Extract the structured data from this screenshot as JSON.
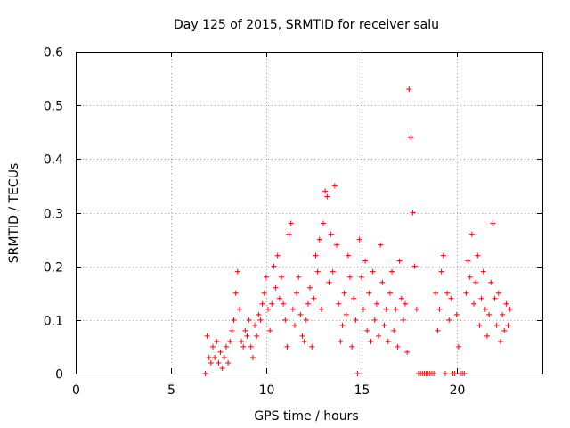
{
  "chart_data": {
    "type": "scatter",
    "title": "Day 125 of 2015, SRMTID for receiver salu",
    "xlabel": "GPS time / hours",
    "ylabel": "SRMTID / TECUs",
    "xlim": [
      0,
      24.5
    ],
    "ylim": [
      0,
      0.6
    ],
    "xticks": [
      0,
      5,
      10,
      15,
      20
    ],
    "xtick_labels": [
      "0",
      "5",
      "10",
      "15",
      "20"
    ],
    "yticks": [
      0,
      0.1,
      0.2,
      0.3,
      0.4,
      0.5,
      0.6
    ],
    "ytick_labels": [
      "0",
      "0.1",
      "0.2",
      "0.3",
      "0.4",
      "0.5",
      "0.6"
    ],
    "grid": true,
    "marker": "+",
    "series": [
      {
        "name": "SRMTID",
        "color": "#ff0000",
        "x": [
          6.8,
          6.9,
          7.0,
          7.1,
          7.2,
          7.3,
          7.4,
          7.5,
          7.6,
          7.7,
          7.8,
          7.9,
          8.0,
          8.1,
          8.2,
          8.3,
          8.4,
          8.5,
          8.6,
          8.7,
          8.8,
          8.9,
          9.0,
          9.1,
          9.2,
          9.3,
          9.4,
          9.5,
          9.6,
          9.7,
          9.8,
          9.9,
          10.0,
          10.1,
          10.2,
          10.3,
          10.4,
          10.5,
          10.6,
          10.7,
          10.8,
          10.9,
          11.0,
          11.1,
          11.2,
          11.3,
          11.4,
          11.5,
          11.6,
          11.7,
          11.8,
          11.9,
          12.0,
          12.1,
          12.2,
          12.3,
          12.4,
          12.5,
          12.6,
          12.7,
          12.8,
          12.9,
          13.0,
          13.1,
          13.2,
          13.3,
          13.4,
          13.5,
          13.6,
          13.7,
          13.8,
          13.9,
          14.0,
          14.1,
          14.2,
          14.3,
          14.4,
          14.5,
          14.6,
          14.7,
          14.8,
          14.9,
          15.0,
          15.1,
          15.2,
          15.3,
          15.4,
          15.5,
          15.6,
          15.7,
          15.8,
          15.9,
          16.0,
          16.1,
          16.2,
          16.3,
          16.4,
          16.5,
          16.6,
          16.7,
          16.8,
          16.9,
          17.0,
          17.1,
          17.2,
          17.3,
          17.4,
          17.5,
          17.6,
          17.7,
          17.8,
          17.9,
          18.0,
          18.1,
          18.2,
          18.3,
          18.4,
          18.5,
          18.6,
          18.7,
          18.8,
          18.9,
          19.0,
          19.1,
          19.2,
          19.3,
          19.4,
          19.5,
          19.6,
          19.7,
          19.8,
          19.9,
          20.0,
          20.1,
          20.2,
          20.3,
          20.4,
          20.5,
          20.6,
          20.7,
          20.8,
          20.9,
          21.0,
          21.1,
          21.2,
          21.3,
          21.4,
          21.5,
          21.6,
          21.7,
          21.8,
          21.9,
          22.0,
          22.1,
          22.2,
          22.3,
          22.4,
          22.5,
          22.6,
          22.7,
          22.8
        ],
        "y": [
          0.0,
          0.07,
          0.03,
          0.02,
          0.05,
          0.03,
          0.06,
          0.02,
          0.04,
          0.01,
          0.03,
          0.05,
          0.02,
          0.06,
          0.08,
          0.1,
          0.15,
          0.19,
          0.12,
          0.06,
          0.05,
          0.08,
          0.07,
          0.1,
          0.05,
          0.03,
          0.09,
          0.07,
          0.11,
          0.1,
          0.13,
          0.15,
          0.18,
          0.12,
          0.08,
          0.13,
          0.2,
          0.16,
          0.22,
          0.14,
          0.18,
          0.13,
          0.1,
          0.05,
          0.26,
          0.28,
          0.12,
          0.09,
          0.15,
          0.18,
          0.11,
          0.07,
          0.06,
          0.1,
          0.13,
          0.16,
          0.05,
          0.14,
          0.22,
          0.19,
          0.25,
          0.12,
          0.28,
          0.34,
          0.33,
          0.17,
          0.26,
          0.19,
          0.35,
          0.24,
          0.13,
          0.06,
          0.09,
          0.15,
          0.11,
          0.22,
          0.18,
          0.05,
          0.14,
          0.1,
          0.0,
          0.25,
          0.18,
          0.12,
          0.21,
          0.08,
          0.15,
          0.06,
          0.19,
          0.1,
          0.13,
          0.07,
          0.24,
          0.17,
          0.09,
          0.12,
          0.06,
          0.15,
          0.19,
          0.08,
          0.12,
          0.05,
          0.21,
          0.14,
          0.1,
          0.13,
          0.04,
          0.53,
          0.44,
          0.3,
          0.2,
          0.12,
          0.0,
          0.0,
          0.0,
          0.0,
          0.0,
          0.0,
          0.0,
          0.0,
          0.0,
          0.15,
          0.08,
          0.12,
          0.19,
          0.22,
          0.0,
          0.15,
          0.1,
          0.14,
          0.0,
          0.0,
          0.11,
          0.05,
          0.0,
          0.0,
          0.0,
          0.15,
          0.21,
          0.18,
          0.26,
          0.13,
          0.17,
          0.22,
          0.09,
          0.14,
          0.19,
          0.12,
          0.07,
          0.11,
          0.17,
          0.28,
          0.14,
          0.09,
          0.15,
          0.06,
          0.11,
          0.08,
          0.13,
          0.09,
          0.12
        ]
      }
    ]
  }
}
